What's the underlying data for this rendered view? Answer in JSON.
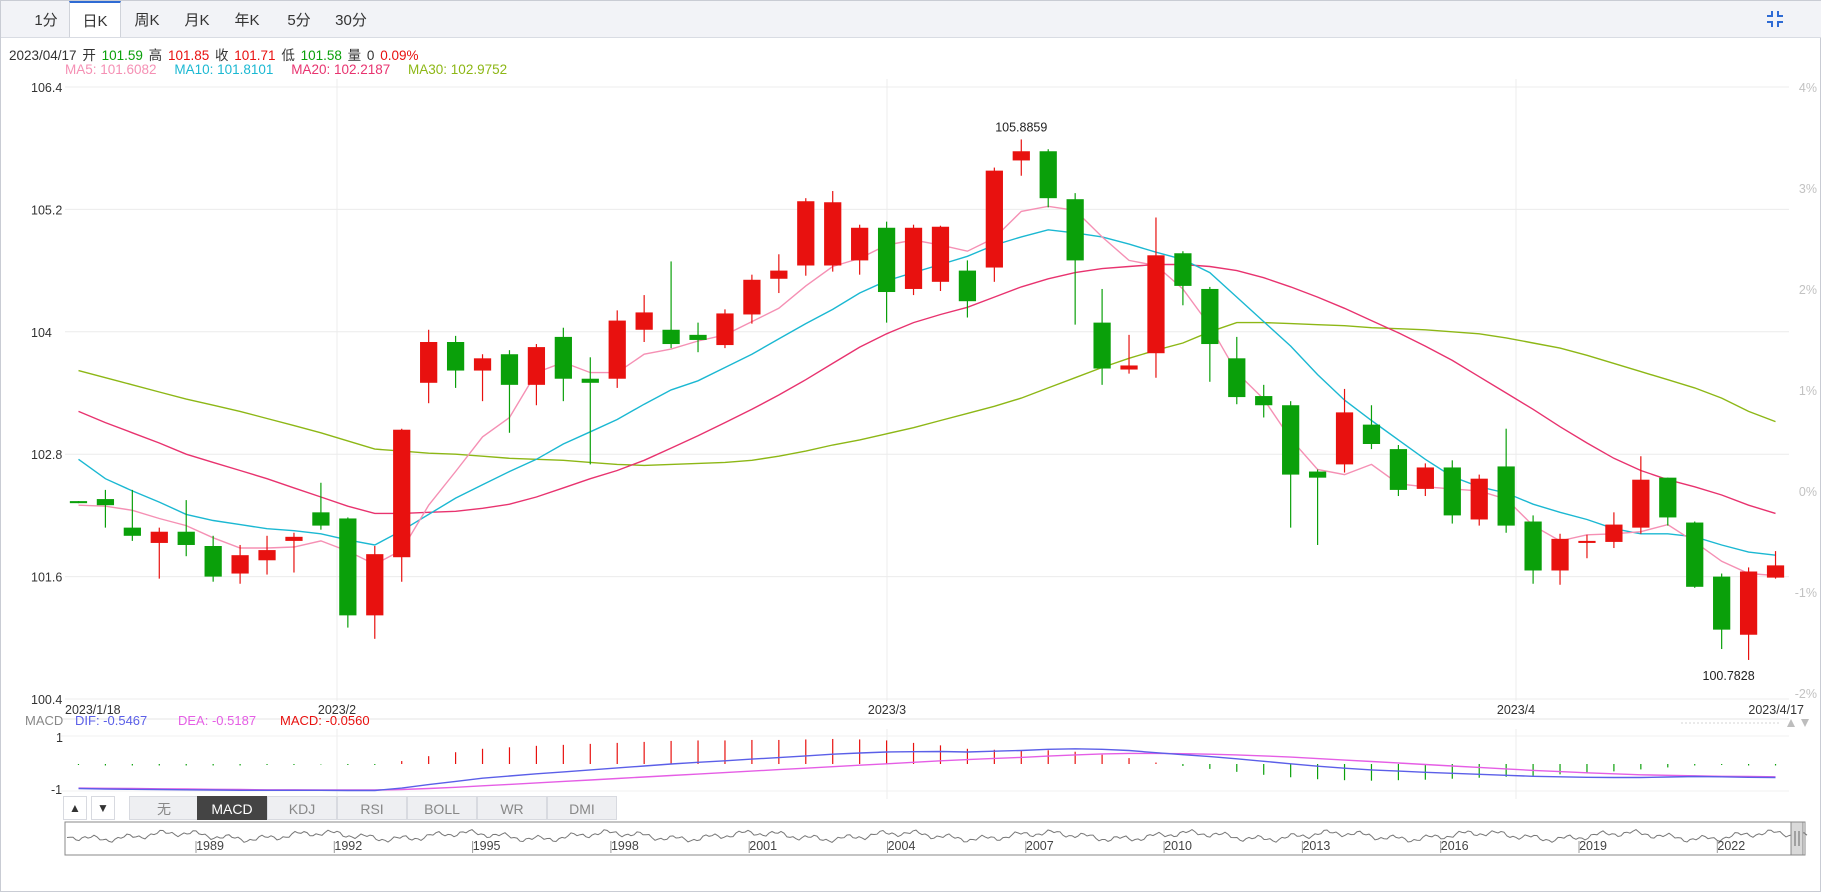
{
  "tabs": [
    {
      "label": "1分"
    },
    {
      "label": "日K"
    },
    {
      "label": "周K"
    },
    {
      "label": "月K"
    },
    {
      "label": "年K"
    },
    {
      "label": "5分"
    },
    {
      "label": "30分"
    }
  ],
  "active_tab": "日K",
  "info": {
    "date": "2023/04/17",
    "open_label": "开",
    "open": "101.59",
    "high_label": "高",
    "high": "101.85",
    "close_label": "收",
    "close": "101.71",
    "low_label": "低",
    "low": "101.58",
    "vol_label": "量",
    "vol": "0",
    "change": "0.09%"
  },
  "ma_labels": {
    "ma5": "MA5: 101.6082",
    "ma10": "MA10: 101.8101",
    "ma20": "MA20: 102.2187",
    "ma30": "MA30: 102.9752"
  },
  "macd_labels": {
    "title": "MACD",
    "dif": "DIF: -0.5467",
    "dea": "DEA: -0.5187",
    "macd": "MACD: -0.0560",
    "y_top": "1",
    "y_bottom": "-1"
  },
  "indicator_tabs": [
    "无",
    "MACD",
    "KDJ",
    "RSI",
    "BOLL",
    "WR",
    "DMI"
  ],
  "active_indicator": "MACD",
  "arrow_labels": {
    "up": "▲",
    "down": "▼"
  },
  "colors": {
    "up": "#e8110f",
    "down": "#0aa00a",
    "ma5": "#f590b4",
    "ma10": "#1bb8d2",
    "ma20": "#e8336f",
    "ma30": "#8db716",
    "dif": "#5b5fe8",
    "dea": "#e55ee5",
    "accent": "#2f6bd4"
  },
  "chart_data": {
    "type": "candlestick",
    "ylim": [
      100.4,
      106.4
    ],
    "y_ticks": [
      "106.4",
      "105.2",
      "104",
      "102.8",
      "101.6",
      "100.4"
    ],
    "pct_ticks": [
      "4%",
      "3%",
      "2%",
      "1%",
      "0%",
      "-1%",
      "-2%"
    ],
    "x_labels": [
      "2023/1/18",
      "2023/2",
      "2023/3",
      "2023/4",
      "2023/4/17"
    ],
    "max_label": "105.8859",
    "min_label": "100.7828",
    "candles": [
      {
        "o": 102.34,
        "c": 102.32,
        "h": 102.34,
        "l": 102.32
      },
      {
        "o": 102.36,
        "c": 102.3,
        "h": 102.45,
        "l": 102.08
      },
      {
        "o": 102.08,
        "c": 102.0,
        "h": 102.45,
        "l": 101.95
      },
      {
        "o": 101.93,
        "c": 102.04,
        "h": 102.08,
        "l": 101.58
      },
      {
        "o": 102.04,
        "c": 101.91,
        "h": 102.35,
        "l": 101.8
      },
      {
        "o": 101.9,
        "c": 101.6,
        "h": 102.0,
        "l": 101.55
      },
      {
        "o": 101.63,
        "c": 101.81,
        "h": 101.91,
        "l": 101.53
      },
      {
        "o": 101.76,
        "c": 101.86,
        "h": 102.0,
        "l": 101.62
      },
      {
        "o": 101.95,
        "c": 101.99,
        "h": 102.03,
        "l": 101.64
      },
      {
        "o": 102.23,
        "c": 102.1,
        "h": 102.52,
        "l": 102.06
      },
      {
        "o": 102.17,
        "c": 101.22,
        "h": 102.18,
        "l": 101.1
      },
      {
        "o": 101.22,
        "c": 101.82,
        "h": 101.9,
        "l": 100.99
      },
      {
        "o": 101.79,
        "c": 103.04,
        "h": 103.05,
        "l": 101.55
      },
      {
        "o": 103.5,
        "c": 103.9,
        "h": 104.02,
        "l": 103.3
      },
      {
        "o": 103.9,
        "c": 103.62,
        "h": 103.96,
        "l": 103.45
      },
      {
        "o": 103.62,
        "c": 103.74,
        "h": 103.78,
        "l": 103.32
      },
      {
        "o": 103.78,
        "c": 103.48,
        "h": 103.82,
        "l": 103.01
      },
      {
        "o": 103.48,
        "c": 103.85,
        "h": 103.88,
        "l": 103.28
      },
      {
        "o": 103.95,
        "c": 103.54,
        "h": 104.04,
        "l": 103.32
      },
      {
        "o": 103.54,
        "c": 103.5,
        "h": 103.75,
        "l": 102.7
      },
      {
        "o": 103.54,
        "c": 104.11,
        "h": 104.21,
        "l": 103.45
      },
      {
        "o": 104.02,
        "c": 104.19,
        "h": 104.36,
        "l": 103.9
      },
      {
        "o": 104.02,
        "c": 103.88,
        "h": 104.69,
        "l": 103.84
      },
      {
        "o": 103.97,
        "c": 103.92,
        "h": 104.09,
        "l": 103.8
      },
      {
        "o": 103.87,
        "c": 104.18,
        "h": 104.22,
        "l": 103.84
      },
      {
        "o": 104.17,
        "c": 104.51,
        "h": 104.56,
        "l": 104.08
      },
      {
        "o": 104.52,
        "c": 104.6,
        "h": 104.76,
        "l": 104.38
      },
      {
        "o": 104.65,
        "c": 105.28,
        "h": 105.31,
        "l": 104.55
      },
      {
        "o": 104.65,
        "c": 105.27,
        "h": 105.38,
        "l": 104.59
      },
      {
        "o": 104.7,
        "c": 105.02,
        "h": 105.05,
        "l": 104.56
      },
      {
        "o": 105.02,
        "c": 104.39,
        "h": 105.08,
        "l": 104.09
      },
      {
        "o": 104.42,
        "c": 105.02,
        "h": 105.05,
        "l": 104.36
      },
      {
        "o": 104.49,
        "c": 105.03,
        "h": 105.04,
        "l": 104.4
      },
      {
        "o": 104.6,
        "c": 104.3,
        "h": 104.7,
        "l": 104.14
      },
      {
        "o": 104.63,
        "c": 105.58,
        "h": 105.61,
        "l": 104.49
      },
      {
        "o": 105.68,
        "c": 105.77,
        "h": 105.8859,
        "l": 105.53
      },
      {
        "o": 105.77,
        "c": 105.31,
        "h": 105.79,
        "l": 105.22
      },
      {
        "o": 105.3,
        "c": 104.7,
        "h": 105.36,
        "l": 104.07
      },
      {
        "o": 104.09,
        "c": 103.64,
        "h": 104.42,
        "l": 103.48
      },
      {
        "o": 103.63,
        "c": 103.67,
        "h": 103.97,
        "l": 103.59
      },
      {
        "o": 103.79,
        "c": 104.75,
        "h": 105.12,
        "l": 103.55
      },
      {
        "o": 104.77,
        "c": 104.45,
        "h": 104.79,
        "l": 104.26
      },
      {
        "o": 104.42,
        "c": 103.88,
        "h": 104.44,
        "l": 103.51
      },
      {
        "o": 103.74,
        "c": 103.36,
        "h": 103.95,
        "l": 103.29
      },
      {
        "o": 103.37,
        "c": 103.28,
        "h": 103.48,
        "l": 103.16
      },
      {
        "o": 103.28,
        "c": 102.6,
        "h": 103.32,
        "l": 102.08
      },
      {
        "o": 102.63,
        "c": 102.57,
        "h": 102.65,
        "l": 101.91
      },
      {
        "o": 102.7,
        "c": 103.21,
        "h": 103.44,
        "l": 102.62
      },
      {
        "o": 103.09,
        "c": 102.9,
        "h": 103.28,
        "l": 102.85
      },
      {
        "o": 102.85,
        "c": 102.45,
        "h": 102.89,
        "l": 102.39
      },
      {
        "o": 102.46,
        "c": 102.67,
        "h": 102.71,
        "l": 102.39
      },
      {
        "o": 102.67,
        "c": 102.2,
        "h": 102.74,
        "l": 102.12
      },
      {
        "o": 102.16,
        "c": 102.56,
        "h": 102.6,
        "l": 102.1
      },
      {
        "o": 102.68,
        "c": 102.1,
        "h": 103.05,
        "l": 102.03
      },
      {
        "o": 102.14,
        "c": 101.66,
        "h": 102.2,
        "l": 101.53
      },
      {
        "o": 101.66,
        "c": 101.97,
        "h": 102.02,
        "l": 101.52
      },
      {
        "o": 101.93,
        "c": 101.95,
        "h": 102.01,
        "l": 101.78
      },
      {
        "o": 101.94,
        "c": 102.11,
        "h": 102.23,
        "l": 101.88
      },
      {
        "o": 102.08,
        "c": 102.55,
        "h": 102.78,
        "l": 102.02
      },
      {
        "o": 102.57,
        "c": 102.18,
        "h": 102.57,
        "l": 102.1
      },
      {
        "o": 102.13,
        "c": 101.5,
        "h": 102.14,
        "l": 101.49
      },
      {
        "o": 101.6,
        "c": 101.08,
        "h": 101.63,
        "l": 100.89
      },
      {
        "o": 101.03,
        "c": 101.65,
        "h": 101.69,
        "l": 100.7828
      },
      {
        "o": 101.59,
        "c": 101.71,
        "h": 101.85,
        "l": 101.58
      }
    ],
    "ma5": [
      102.3,
      102.29,
      102.25,
      102.17,
      102.1,
      101.98,
      101.88,
      101.88,
      101.89,
      101.95,
      101.85,
      101.72,
      101.86,
      102.3,
      102.63,
      102.97,
      103.16,
      103.6,
      103.7,
      103.6,
      103.6,
      103.78,
      103.83,
      103.91,
      103.97,
      104.1,
      104.23,
      104.45,
      104.64,
      104.72,
      104.85,
      104.9,
      104.85,
      104.79,
      104.92,
      105.18,
      105.23,
      105.19,
      104.93,
      104.7,
      104.65,
      104.42,
      104.06,
      103.6,
      103.34,
      102.95,
      102.65,
      102.6,
      102.7,
      102.51,
      102.48,
      102.46,
      102.44,
      102.36,
      102.1,
      101.95,
      102.01,
      102.02,
      102.04,
      102.11,
      101.94,
      101.75,
      101.63,
      101.61
    ],
    "ma10": [
      102.75,
      102.56,
      102.44,
      102.33,
      102.21,
      102.15,
      102.11,
      102.07,
      102.05,
      102.02,
      101.96,
      101.91,
      102.05,
      102.21,
      102.37,
      102.5,
      102.63,
      102.75,
      102.9,
      103.02,
      103.14,
      103.29,
      103.43,
      103.52,
      103.65,
      103.78,
      103.93,
      104.08,
      104.22,
      104.38,
      104.5,
      104.58,
      104.66,
      104.74,
      104.85,
      104.93,
      105.0,
      104.97,
      104.93,
      104.86,
      104.78,
      104.71,
      104.58,
      104.34,
      104.1,
      103.86,
      103.58,
      103.33,
      103.13,
      102.94,
      102.75,
      102.58,
      102.48,
      102.42,
      102.31,
      102.23,
      102.16,
      102.07,
      102.02,
      102.02,
      101.99,
      101.91,
      101.84,
      101.81
    ],
    "ma20": [
      103.22,
      103.11,
      103.01,
      102.91,
      102.8,
      102.72,
      102.64,
      102.56,
      102.47,
      102.38,
      102.29,
      102.22,
      102.22,
      102.23,
      102.24,
      102.27,
      102.31,
      102.38,
      102.47,
      102.56,
      102.64,
      102.74,
      102.86,
      102.98,
      103.11,
      103.24,
      103.38,
      103.53,
      103.69,
      103.85,
      103.98,
      104.09,
      104.17,
      104.24,
      104.34,
      104.44,
      104.52,
      104.58,
      104.62,
      104.64,
      104.66,
      104.66,
      104.64,
      104.6,
      104.53,
      104.44,
      104.34,
      104.23,
      104.11,
      103.99,
      103.86,
      103.72,
      103.56,
      103.4,
      103.24,
      103.07,
      102.91,
      102.76,
      102.64,
      102.55,
      102.48,
      102.4,
      102.3,
      102.22
    ],
    "ma30": [
      103.62,
      103.55,
      103.48,
      103.41,
      103.34,
      103.28,
      103.22,
      103.15,
      103.08,
      103.01,
      102.93,
      102.85,
      102.83,
      102.81,
      102.8,
      102.78,
      102.76,
      102.75,
      102.74,
      102.72,
      102.7,
      102.69,
      102.7,
      102.71,
      102.72,
      102.74,
      102.78,
      102.83,
      102.89,
      102.94,
      103.0,
      103.06,
      103.13,
      103.2,
      103.27,
      103.35,
      103.45,
      103.55,
      103.65,
      103.74,
      103.82,
      103.89,
      104.0,
      104.09,
      104.09,
      104.08,
      104.07,
      104.06,
      104.04,
      104.03,
      104.02,
      104.0,
      103.98,
      103.94,
      103.89,
      103.84,
      103.77,
      103.69,
      103.61,
      103.53,
      103.45,
      103.35,
      103.22,
      103.12
    ],
    "macd": {
      "ylim": [
        -1.1,
        1.1
      ],
      "dif": [
        -1.0,
        -1.02,
        -1.03,
        -1.04,
        -1.05,
        -1.06,
        -1.07,
        -1.07,
        -1.07,
        -1.07,
        -1.08,
        -1.08,
        -0.98,
        -0.84,
        -0.71,
        -0.58,
        -0.49,
        -0.4,
        -0.32,
        -0.24,
        -0.16,
        -0.08,
        0.0,
        0.07,
        0.13,
        0.2,
        0.26,
        0.33,
        0.4,
        0.45,
        0.49,
        0.5,
        0.51,
        0.49,
        0.52,
        0.55,
        0.6,
        0.62,
        0.6,
        0.55,
        0.46,
        0.38,
        0.3,
        0.21,
        0.11,
        0.01,
        -0.09,
        -0.17,
        -0.24,
        -0.29,
        -0.34,
        -0.38,
        -0.42,
        -0.46,
        -0.5,
        -0.52,
        -0.54,
        -0.55,
        -0.55,
        -0.53,
        -0.51,
        -0.52,
        -0.54,
        -0.55
      ],
      "dea": [
        -0.98,
        -0.99,
        -1.0,
        -1.01,
        -1.02,
        -1.03,
        -1.04,
        -1.05,
        -1.05,
        -1.06,
        -1.06,
        -1.06,
        -1.04,
        -1.0,
        -0.95,
        -0.89,
        -0.83,
        -0.77,
        -0.71,
        -0.65,
        -0.59,
        -0.53,
        -0.47,
        -0.41,
        -0.35,
        -0.29,
        -0.23,
        -0.17,
        -0.11,
        -0.05,
        0.01,
        0.07,
        0.13,
        0.18,
        0.23,
        0.27,
        0.32,
        0.37,
        0.41,
        0.43,
        0.43,
        0.42,
        0.4,
        0.37,
        0.33,
        0.28,
        0.22,
        0.16,
        0.1,
        0.04,
        -0.02,
        -0.08,
        -0.14,
        -0.2,
        -0.26,
        -0.31,
        -0.36,
        -0.4,
        -0.44,
        -0.46,
        -0.48,
        -0.5,
        -0.51,
        -0.52
      ],
      "hist": [
        -0.04,
        -0.06,
        -0.06,
        -0.06,
        -0.06,
        -0.06,
        -0.06,
        -0.04,
        -0.04,
        -0.02,
        -0.04,
        -0.04,
        0.12,
        0.32,
        0.48,
        0.62,
        0.68,
        0.74,
        0.78,
        0.82,
        0.86,
        0.9,
        0.94,
        0.96,
        0.96,
        0.98,
        0.98,
        1.0,
        1.02,
        1.0,
        0.96,
        0.86,
        0.76,
        0.62,
        0.58,
        0.56,
        0.56,
        0.5,
        0.38,
        0.24,
        0.06,
        -0.08,
        -0.2,
        -0.32,
        -0.44,
        -0.54,
        -0.62,
        -0.66,
        -0.68,
        -0.66,
        -0.64,
        -0.6,
        -0.56,
        -0.52,
        -0.48,
        -0.42,
        -0.36,
        -0.3,
        -0.22,
        -0.14,
        -0.06,
        -0.04,
        -0.06,
        -0.06
      ]
    },
    "navigator_years": [
      "1989",
      "1992",
      "1995",
      "1998",
      "2001",
      "2004",
      "2007",
      "2010",
      "2013",
      "2016",
      "2019",
      "2022"
    ]
  }
}
